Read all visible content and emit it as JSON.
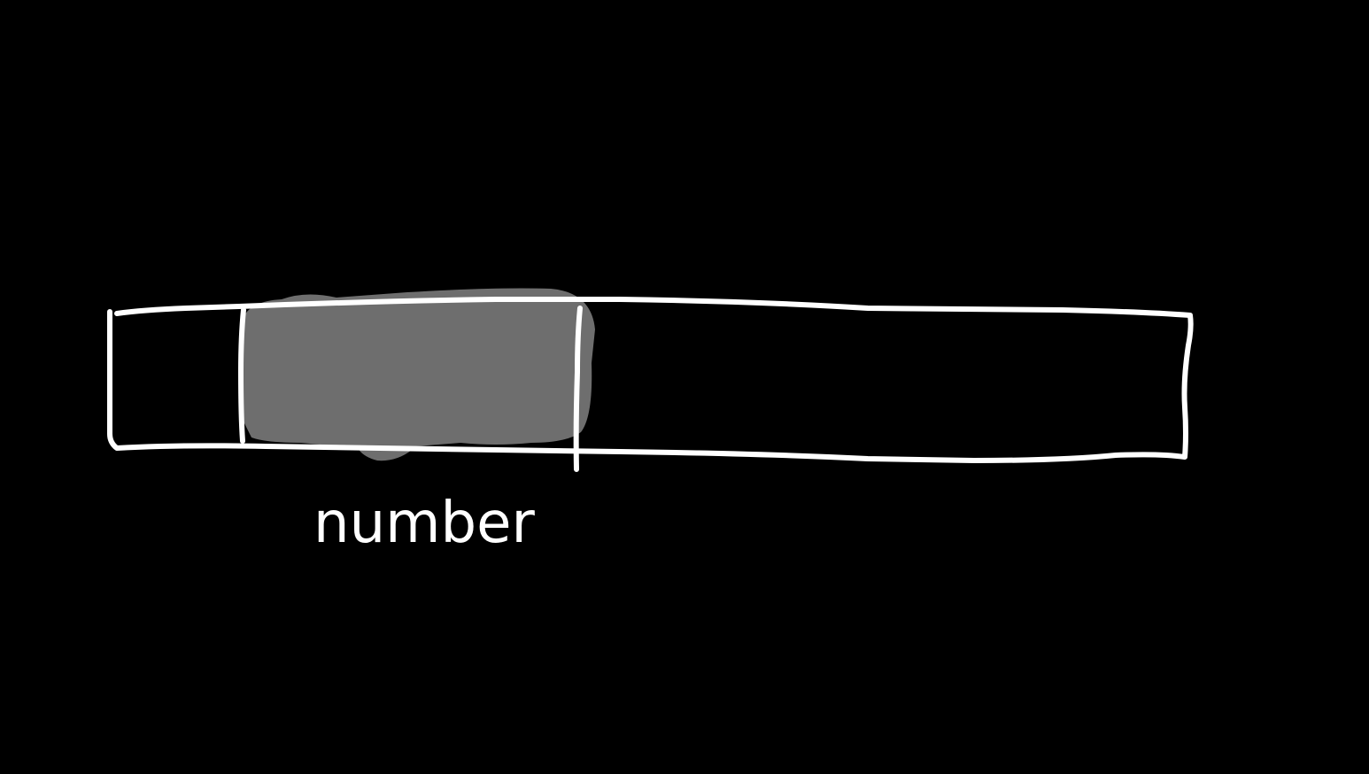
{
  "diagram": {
    "label": "number",
    "colors": {
      "background": "#000000",
      "stroke": "#ffffff",
      "highlight": "#6e6e6e"
    }
  }
}
